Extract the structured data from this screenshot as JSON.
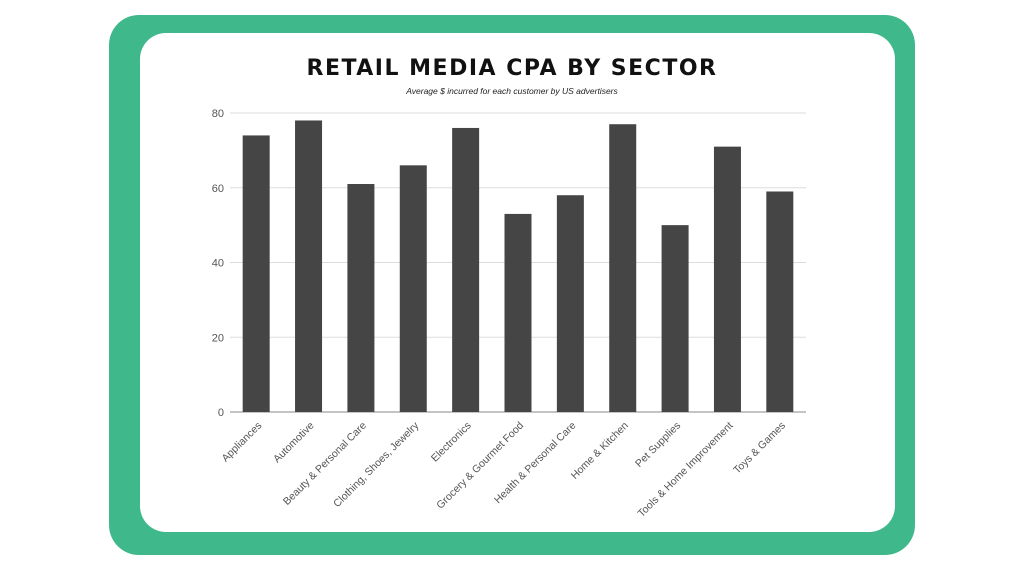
{
  "chart_data": {
    "type": "bar",
    "title": "RETAIL MEDIA CPA BY SECTOR",
    "subtitle": "Average $ incurred for each customer by US advertisers",
    "xlabel": "",
    "ylabel": "",
    "ylim": [
      0,
      80
    ],
    "yticks": [
      0,
      20,
      40,
      60,
      80
    ],
    "grid": true,
    "categories": [
      "Appliances",
      "Automotive",
      "Beauty & Personal Care",
      "Clothing, Shoes, Jewelry",
      "Electronics",
      "Grocery & Gourmet Food",
      "Health & Personal Care",
      "Home & Kitchen",
      "Pet Supplies",
      "Tools & Home Improvement",
      "Toys & Games"
    ],
    "values": [
      74,
      78,
      61,
      66,
      76,
      53,
      58,
      77,
      50,
      71,
      59
    ]
  },
  "colors": {
    "frame": "#3fb88c",
    "bar": "#454545",
    "grid": "#dddddd"
  }
}
